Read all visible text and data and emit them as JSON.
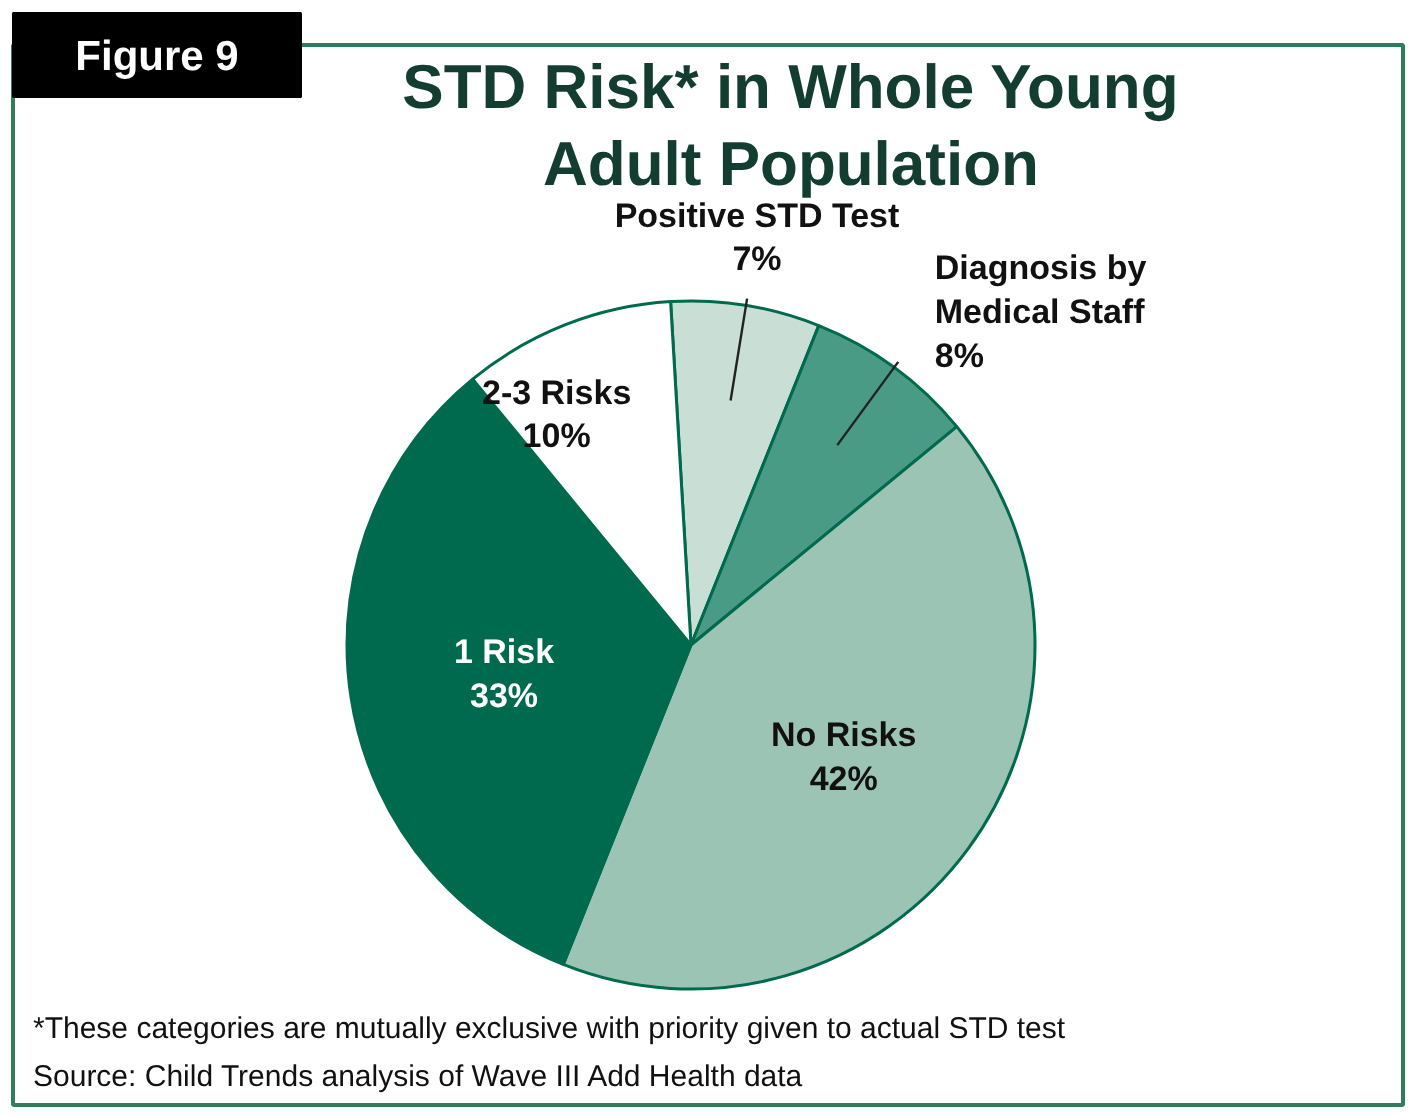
{
  "chart_data": {
    "type": "pie",
    "title": "STD Risk* in Whole Young Adult Population",
    "categories": [
      "Positive STD Test",
      "Diagnosis by Medical Staff",
      "No Risks",
      "1 Risk",
      "2-3 Risks"
    ],
    "values": [
      7,
      8,
      42,
      33,
      10
    ],
    "value_labels": [
      "7%",
      "8%",
      "42%",
      "33%",
      "10%"
    ],
    "colors": [
      "#c9dfd6",
      "#4a9b86",
      "#9bc4b5",
      "#006a4e",
      "#ffffff"
    ],
    "annotations": [
      "Figure 9",
      "*These categories are mutually exclusive with priority given to actual STD test",
      "Source:  Child Trends analysis of Wave III Add Health data"
    ]
  }
}
